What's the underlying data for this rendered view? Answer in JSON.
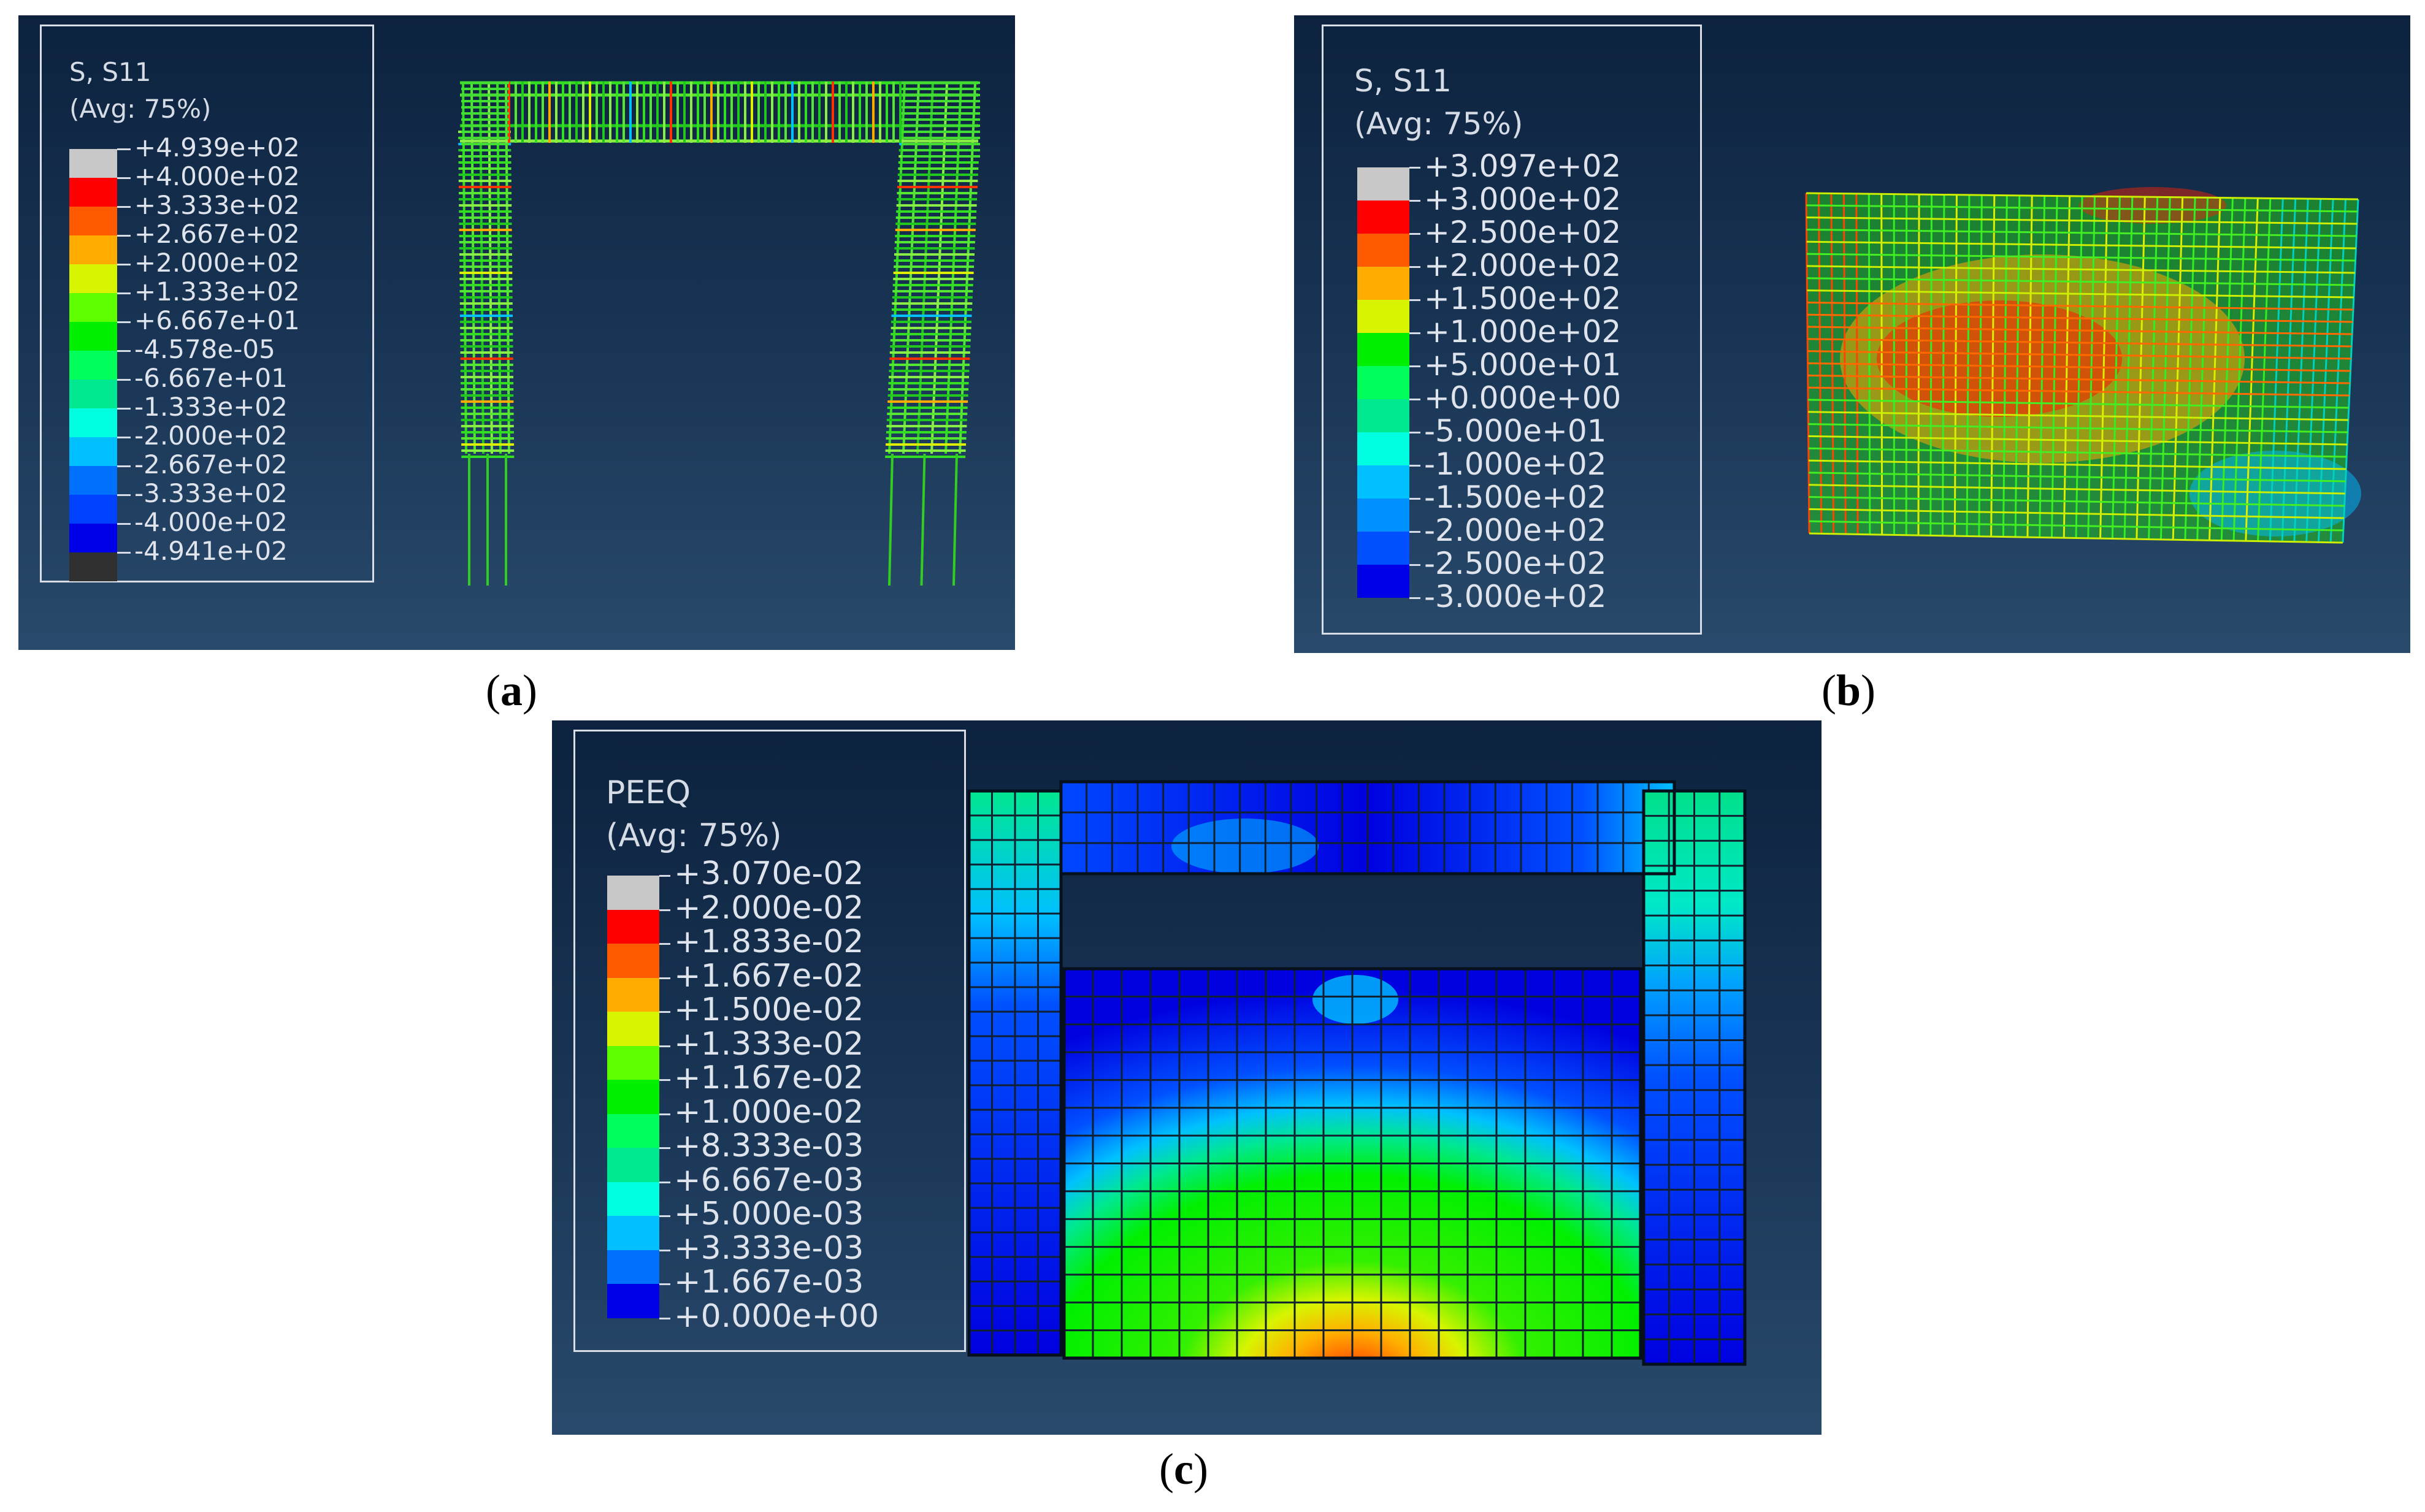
{
  "panels": [
    {
      "id": "a",
      "caption_letter": "a",
      "legend": {
        "title": "S, S11",
        "subtitle": "(Avg: 75%)",
        "labels": [
          "+4.939e+02",
          "+4.000e+02",
          "+3.333e+02",
          "+2.667e+02",
          "+2.000e+02",
          "+1.333e+02",
          "+6.667e+01",
          "-4.578e-05",
          "-6.667e+01",
          "-1.333e+02",
          "-2.000e+02",
          "-2.667e+02",
          "-3.333e+02",
          "-4.000e+02",
          "-4.941e+02"
        ],
        "colors": [
          "#c8c8c8",
          "#ff0000",
          "#ff5a00",
          "#ffab00",
          "#d8f400",
          "#60ff00",
          "#00f000",
          "#00ff5a",
          "#00e890",
          "#00ffe0",
          "#00c0ff",
          "#0070ff",
          "#0040ff",
          "#0000e8",
          "#303030"
        ]
      }
    },
    {
      "id": "b",
      "caption_letter": "b",
      "legend": {
        "title": "S, S11",
        "subtitle": "(Avg: 75%)",
        "labels": [
          "+3.097e+02",
          "+3.000e+02",
          "+2.500e+02",
          "+2.000e+02",
          "+1.500e+02",
          "+1.000e+02",
          "+5.000e+01",
          "+0.000e+00",
          "-5.000e+01",
          "-1.000e+02",
          "-1.500e+02",
          "-2.000e+02",
          "-2.500e+02",
          "-3.000e+02"
        ],
        "colors": [
          "#c8c8c8",
          "#ff0000",
          "#ff5a00",
          "#ffab00",
          "#d8f400",
          "#00f000",
          "#00ff5a",
          "#00e890",
          "#00ffe0",
          "#00c0ff",
          "#0090ff",
          "#0050ff",
          "#0000e8"
        ]
      }
    },
    {
      "id": "c",
      "caption_letter": "c",
      "legend": {
        "title": "PEEQ",
        "subtitle": "(Avg: 75%)",
        "labels": [
          "+3.070e-02",
          "+2.000e-02",
          "+1.833e-02",
          "+1.667e-02",
          "+1.500e-02",
          "+1.333e-02",
          "+1.167e-02",
          "+1.000e-02",
          "+8.333e-03",
          "+6.667e-03",
          "+5.000e-03",
          "+3.333e-03",
          "+1.667e-03",
          "+0.000e+00"
        ],
        "colors": [
          "#c8c8c8",
          "#ff0000",
          "#ff5a00",
          "#ffab00",
          "#d8f400",
          "#60ff00",
          "#00f000",
          "#00ff5a",
          "#00e890",
          "#00ffe0",
          "#00c0ff",
          "#0070ff",
          "#0000e8"
        ]
      }
    }
  ]
}
